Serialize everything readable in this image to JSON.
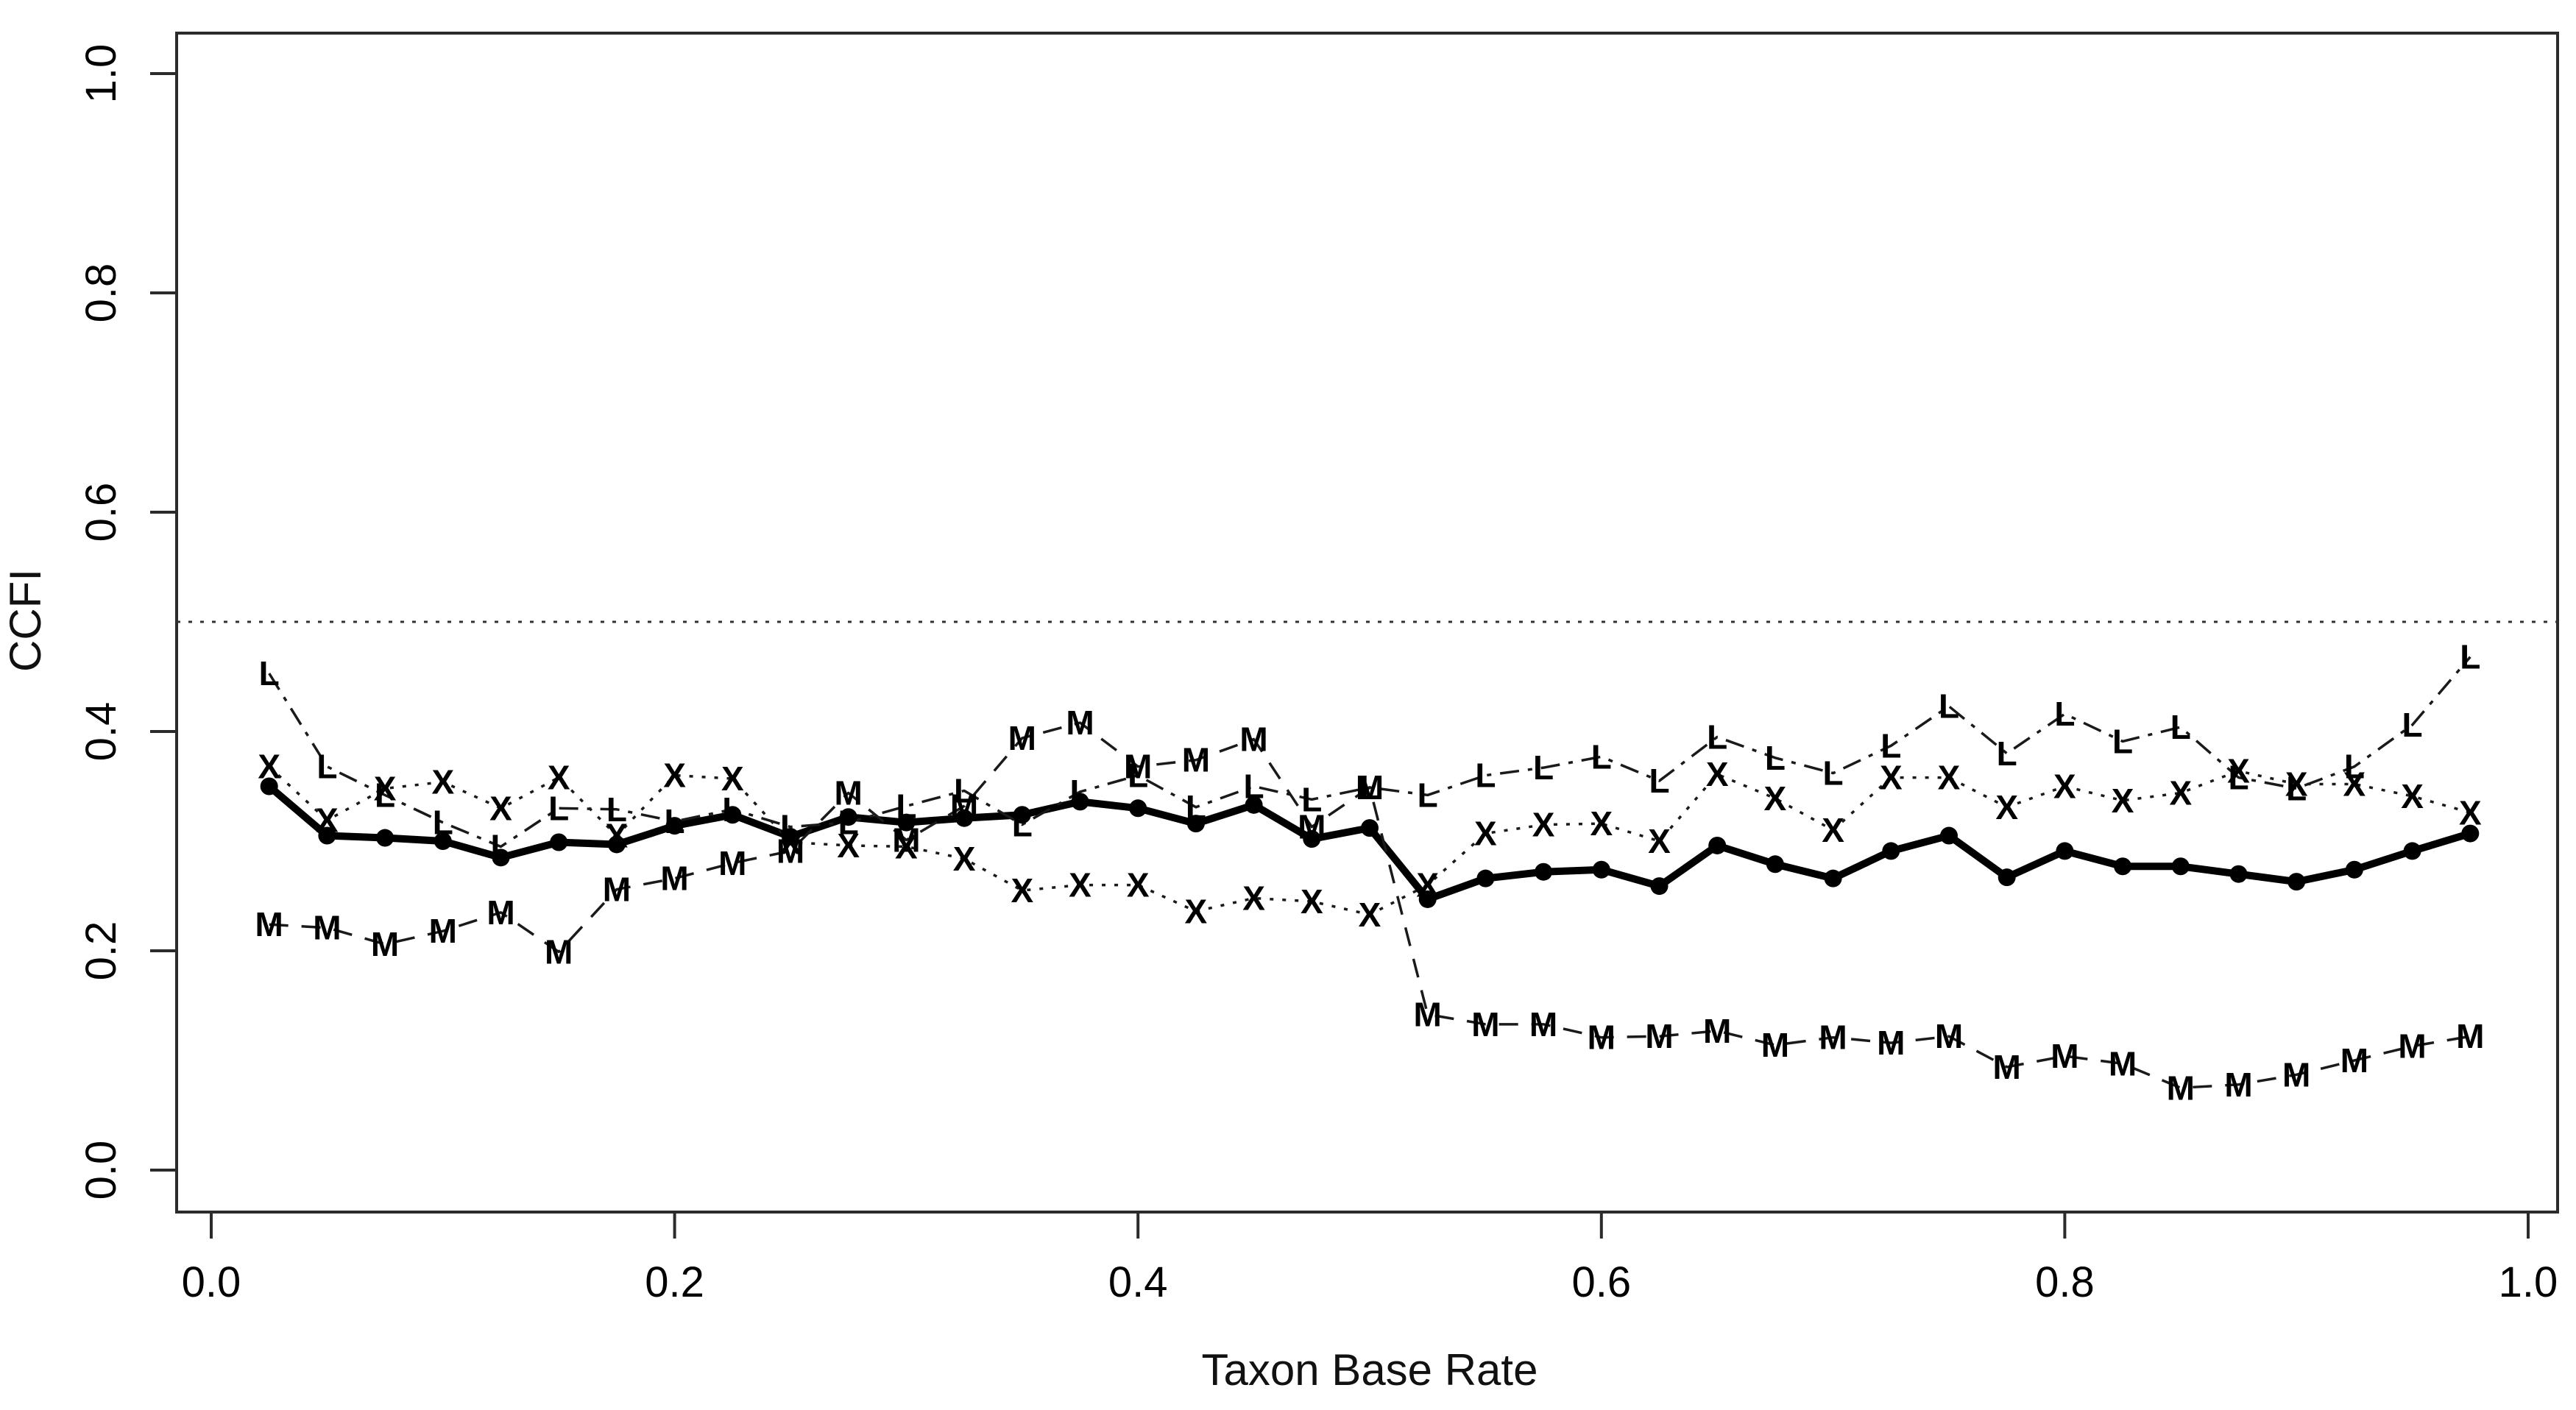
{
  "chart_data": {
    "type": "line",
    "title": "",
    "xlabel": "Taxon Base Rate",
    "ylabel": "CCFI",
    "xlim": [
      0.0,
      1.0
    ],
    "ylim": [
      0.0,
      1.0
    ],
    "grid": false,
    "legend": "none",
    "xticks": [
      "0.0",
      "0.2",
      "0.4",
      "0.6",
      "0.8",
      "1.0"
    ],
    "yticks": [
      "0.0",
      "0.2",
      "0.4",
      "0.6",
      "0.8",
      "1.0"
    ],
    "reference_line": {
      "y": 0.5,
      "style": "dotted",
      "color": "#333333"
    },
    "x": [
      0.025,
      0.05,
      0.075,
      0.1,
      0.125,
      0.15,
      0.175,
      0.2,
      0.225,
      0.25,
      0.275,
      0.3,
      0.325,
      0.35,
      0.375,
      0.4,
      0.425,
      0.45,
      0.475,
      0.5,
      0.525,
      0.55,
      0.575,
      0.6,
      0.625,
      0.65,
      0.675,
      0.7,
      0.725,
      0.75,
      0.775,
      0.8,
      0.825,
      0.85,
      0.875,
      0.9,
      0.925,
      0.95,
      0.975
    ],
    "series": [
      {
        "name": "mean",
        "marker": "dot",
        "style": "solid",
        "color": "#000000",
        "values": [
          0.35,
          0.305,
          0.303,
          0.3,
          0.285,
          0.299,
          0.297,
          0.314,
          0.324,
          0.304,
          0.322,
          0.317,
          0.321,
          0.324,
          0.336,
          0.33,
          0.316,
          0.333,
          0.302,
          0.312,
          0.247,
          0.266,
          0.272,
          0.274,
          0.259,
          0.296,
          0.279,
          0.266,
          0.291,
          0.305,
          0.267,
          0.291,
          0.277,
          0.277,
          0.27,
          0.263,
          0.274,
          0.291,
          0.307
        ]
      },
      {
        "name": "L",
        "marker": "L",
        "style": "dashdot",
        "color": "#1a1a1a",
        "values": [
          0.453,
          0.368,
          0.342,
          0.317,
          0.295,
          0.33,
          0.329,
          0.318,
          0.329,
          0.313,
          0.317,
          0.332,
          0.346,
          0.315,
          0.345,
          0.36,
          0.331,
          0.35,
          0.338,
          0.349,
          0.342,
          0.36,
          0.367,
          0.377,
          0.355,
          0.395,
          0.376,
          0.362,
          0.387,
          0.423,
          0.38,
          0.416,
          0.391,
          0.404,
          0.358,
          0.348,
          0.368,
          0.406,
          0.468
        ]
      },
      {
        "name": "X",
        "marker": "X",
        "style": "dotted",
        "color": "#1a1a1a",
        "values": [
          0.368,
          0.319,
          0.348,
          0.354,
          0.33,
          0.358,
          0.305,
          0.36,
          0.357,
          0.299,
          0.296,
          0.295,
          0.284,
          0.255,
          0.26,
          0.26,
          0.236,
          0.248,
          0.245,
          0.233,
          0.26,
          0.307,
          0.315,
          0.316,
          0.3,
          0.361,
          0.339,
          0.31,
          0.358,
          0.358,
          0.331,
          0.35,
          0.337,
          0.344,
          0.364,
          0.352,
          0.352,
          0.341,
          0.326
        ]
      },
      {
        "name": "M",
        "marker": "M",
        "style": "dashed",
        "color": "#1a1a1a",
        "values": [
          0.224,
          0.221,
          0.206,
          0.218,
          0.235,
          0.199,
          0.256,
          0.266,
          0.28,
          0.291,
          0.344,
          0.301,
          0.332,
          0.394,
          0.408,
          0.368,
          0.374,
          0.393,
          0.313,
          0.349,
          0.142,
          0.133,
          0.133,
          0.121,
          0.122,
          0.127,
          0.114,
          0.121,
          0.116,
          0.122,
          0.094,
          0.104,
          0.097,
          0.075,
          0.078,
          0.087,
          0.1,
          0.113,
          0.122
        ]
      }
    ]
  }
}
